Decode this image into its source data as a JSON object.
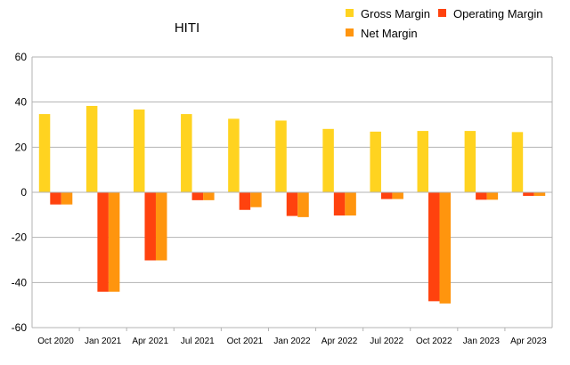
{
  "chart_data": {
    "type": "bar",
    "title": "HITI",
    "xlabel": "",
    "ylabel": "",
    "ylim": [
      -60,
      60
    ],
    "yticks": [
      60,
      40,
      20,
      0,
      -20,
      -40,
      -60
    ],
    "grid": true,
    "legend_position": "top-right",
    "categories": [
      "Oct 2020",
      "Jan 2021",
      "Apr 2021",
      "Jul 2021",
      "Oct 2021",
      "Jan 2022",
      "Apr 2022",
      "Jul 2022",
      "Oct 2022",
      "Jan 2023",
      "Apr 2023"
    ],
    "series": [
      {
        "name": "Gross Margin",
        "color": "#FFD320",
        "values": [
          34.7,
          38.3,
          36.7,
          34.7,
          32.6,
          31.8,
          28.1,
          26.9,
          27.2,
          27.2,
          26.7
        ]
      },
      {
        "name": "Operating Margin",
        "color": "#FF420E",
        "values": [
          -5.4,
          -44.1,
          -30.2,
          -3.5,
          -7.8,
          -10.5,
          -10.3,
          -3.0,
          -48.3,
          -3.3,
          -1.6
        ]
      },
      {
        "name": "Net Margin",
        "color": "#FF950E",
        "values": [
          -5.4,
          -44.1,
          -30.2,
          -3.5,
          -6.6,
          -11.0,
          -10.3,
          -3.0,
          -49.3,
          -3.3,
          -1.6
        ]
      }
    ]
  }
}
